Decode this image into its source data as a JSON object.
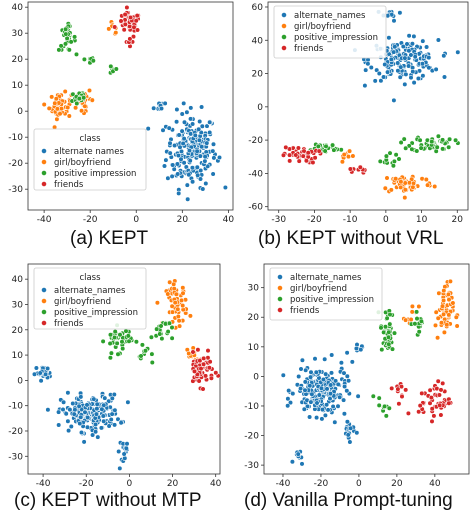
{
  "chart_data": [
    {
      "type": "scatter",
      "caption": "(a) KEPT",
      "xlim": [
        -47,
        42
      ],
      "ylim": [
        -38,
        42
      ],
      "xticks": [
        -40,
        -20,
        0,
        20,
        40
      ],
      "yticks": [
        -30,
        -20,
        -10,
        0,
        10,
        20,
        30,
        40
      ],
      "legend": {
        "title": "class",
        "placement": "lower-left"
      },
      "series": [
        {
          "name": "alternate names",
          "color": "#1f77b4",
          "clusters": [
            {
              "center": [
                24,
                -15
              ],
              "spread": [
                9,
                12
              ],
              "count": 210
            },
            {
              "center": [
                10,
                2
              ],
              "spread": [
                2,
                2
              ],
              "count": 10
            }
          ]
        },
        {
          "name": "girl/boyfriend",
          "color": "#ff7f0e",
          "clusters": [
            {
              "center": [
                -33,
                2
              ],
              "spread": [
                4,
                4
              ],
              "count": 55
            },
            {
              "center": [
                -22,
                4
              ],
              "spread": [
                3,
                3
              ],
              "count": 20
            },
            {
              "center": [
                -10,
                32
              ],
              "spread": [
                2,
                2
              ],
              "count": 8
            }
          ]
        },
        {
          "name": "positive impression",
          "color": "#2ca02c",
          "clusters": [
            {
              "center": [
                -30,
                28
              ],
              "spread": [
                3,
                4
              ],
              "count": 30
            },
            {
              "center": [
                -25,
                5
              ],
              "spread": [
                3,
                3
              ],
              "count": 20
            },
            {
              "center": [
                -20,
                20
              ],
              "spread": [
                2,
                2
              ],
              "count": 8
            },
            {
              "center": [
                -10,
                16
              ],
              "spread": [
                2,
                2
              ],
              "count": 6
            }
          ]
        },
        {
          "name": "friends",
          "color": "#d62728",
          "clusters": [
            {
              "center": [
                -3,
                34
              ],
              "spread": [
                4,
                3
              ],
              "count": 55
            },
            {
              "center": [
                -3,
                27
              ],
              "spread": [
                2,
                2
              ],
              "count": 8
            }
          ]
        }
      ]
    },
    {
      "type": "scatter",
      "caption": "(b) KEPT without VRL",
      "xlim": [
        -33,
        23
      ],
      "ylim": [
        -62,
        63
      ],
      "xticks": [
        -30,
        -20,
        -10,
        0,
        10,
        20
      ],
      "yticks": [
        -60,
        -40,
        -20,
        0,
        20,
        40,
        60
      ],
      "legend": {
        "title": "",
        "placement": "top-left"
      },
      "series": [
        {
          "name": "alternate_names",
          "color": "#1f77b4",
          "clusters": [
            {
              "center": [
                5,
                28
              ],
              "spread": [
                8,
                10
              ],
              "count": 170
            },
            {
              "center": [
                1,
                55
              ],
              "spread": [
                3,
                3
              ],
              "count": 12
            }
          ]
        },
        {
          "name": "girl/boyfriend",
          "color": "#ff7f0e",
          "clusters": [
            {
              "center": [
                6,
                -46
              ],
              "spread": [
                6,
                5
              ],
              "count": 55
            },
            {
              "center": [
                -10,
                -30
              ],
              "spread": [
                3,
                3
              ],
              "count": 10
            }
          ]
        },
        {
          "name": "positive_impression",
          "color": "#2ca02c",
          "clusters": [
            {
              "center": [
                13,
                -22
              ],
              "spread": [
                5,
                4
              ],
              "count": 50
            },
            {
              "center": [
                -18,
                -25
              ],
              "spread": [
                5,
                3
              ],
              "count": 25
            },
            {
              "center": [
                0,
                -32
              ],
              "spread": [
                3,
                3
              ],
              "count": 12
            }
          ]
        },
        {
          "name": "friends",
          "color": "#d62728",
          "clusters": [
            {
              "center": [
                -24,
                -29
              ],
              "spread": [
                4,
                4
              ],
              "count": 45
            },
            {
              "center": [
                -8,
                -38
              ],
              "spread": [
                2,
                2
              ],
              "count": 8
            }
          ]
        }
      ]
    },
    {
      "type": "scatter",
      "caption": "(c) KEPT without MTP",
      "xlim": [
        -47,
        42
      ],
      "ylim": [
        -37,
        46
      ],
      "xticks": [
        -40,
        -20,
        0,
        20,
        40
      ],
      "yticks": [
        -30,
        -20,
        -10,
        0,
        10,
        20,
        30,
        40
      ],
      "legend": {
        "title": "class",
        "placement": "top-left"
      },
      "series": [
        {
          "name": "alternate_names",
          "color": "#1f77b4",
          "clusters": [
            {
              "center": [
                -18,
                -13
              ],
              "spread": [
                11,
                6
              ],
              "count": 200
            },
            {
              "center": [
                -40,
                3
              ],
              "spread": [
                3,
                2
              ],
              "count": 25
            },
            {
              "center": [
                -2,
                -28
              ],
              "spread": [
                3,
                4
              ],
              "count": 15
            }
          ]
        },
        {
          "name": "girl/boyfriend",
          "color": "#ff7f0e",
          "clusters": [
            {
              "center": [
                22,
                30
              ],
              "spread": [
                4,
                7
              ],
              "count": 60
            },
            {
              "center": [
                30,
                10
              ],
              "spread": [
                3,
                3
              ],
              "count": 12
            }
          ]
        },
        {
          "name": "positive_impression",
          "color": "#2ca02c",
          "clusters": [
            {
              "center": [
                -5,
                16
              ],
              "spread": [
                5,
                4
              ],
              "count": 45
            },
            {
              "center": [
                15,
                20
              ],
              "spread": [
                4,
                4
              ],
              "count": 20
            },
            {
              "center": [
                8,
                10
              ],
              "spread": [
                3,
                3
              ],
              "count": 10
            }
          ]
        },
        {
          "name": "friends",
          "color": "#d62728",
          "clusters": [
            {
              "center": [
                33,
                4
              ],
              "spread": [
                5,
                5
              ],
              "count": 60
            }
          ]
        }
      ]
    },
    {
      "type": "scatter",
      "caption": "(d) Vanilla Prompt-tuning",
      "xlim": [
        -50,
        58
      ],
      "ylim": [
        -33,
        38
      ],
      "xticks": [
        -40,
        -20,
        0,
        20,
        40
      ],
      "yticks": [
        -30,
        -20,
        -10,
        0,
        10,
        20,
        30
      ],
      "legend": {
        "title": "",
        "placement": "top-left"
      },
      "series": [
        {
          "name": "alternate_names",
          "color": "#1f77b4",
          "clusters": [
            {
              "center": [
                -20,
                -5
              ],
              "spread": [
                11,
                7
              ],
              "count": 200
            },
            {
              "center": [
                -5,
                -18
              ],
              "spread": [
                3,
                3
              ],
              "count": 15
            },
            {
              "center": [
                -32,
                -27
              ],
              "spread": [
                2,
                2
              ],
              "count": 10
            },
            {
              "center": [
                -2,
                8
              ],
              "spread": [
                3,
                3
              ],
              "count": 10
            }
          ]
        },
        {
          "name": "girl/boyfriend",
          "color": "#ff7f0e",
          "clusters": [
            {
              "center": [
                45,
                22
              ],
              "spread": [
                4,
                8
              ],
              "count": 55
            },
            {
              "center": [
                28,
                20
              ],
              "spread": [
                3,
                3
              ],
              "count": 10
            }
          ]
        },
        {
          "name": "positive_impression",
          "color": "#2ca02c",
          "clusters": [
            {
              "center": [
                15,
                15
              ],
              "spread": [
                3,
                7
              ],
              "count": 40
            },
            {
              "center": [
                32,
                18
              ],
              "spread": [
                3,
                3
              ],
              "count": 15
            },
            {
              "center": [
                12,
                -10
              ],
              "spread": [
                3,
                3
              ],
              "count": 10
            }
          ]
        },
        {
          "name": "friends",
          "color": "#d62728",
          "clusters": [
            {
              "center": [
                40,
                -8
              ],
              "spread": [
                7,
                5
              ],
              "count": 50
            },
            {
              "center": [
                22,
                -5
              ],
              "spread": [
                3,
                3
              ],
              "count": 10
            }
          ]
        }
      ]
    }
  ]
}
